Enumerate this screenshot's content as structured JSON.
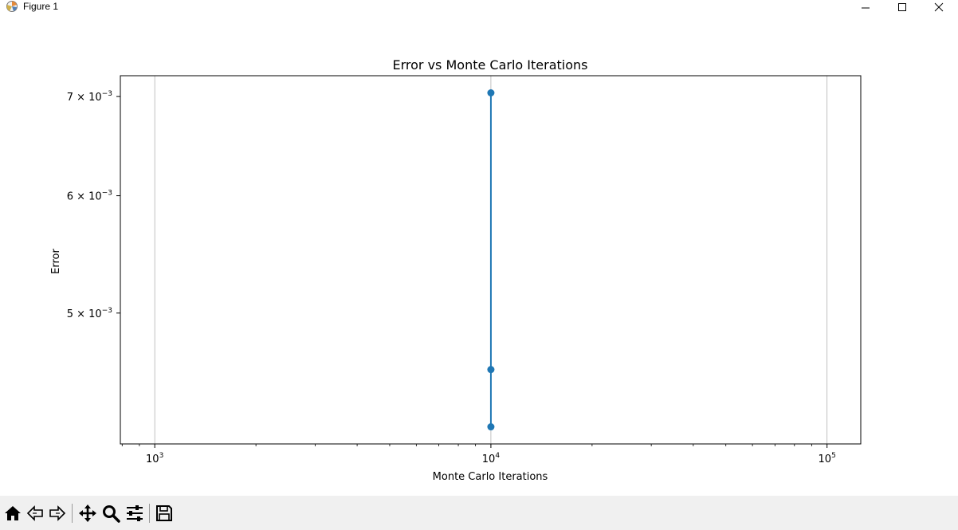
{
  "window": {
    "title": "Figure 1",
    "icons": [
      "matplotlib-logo-icon",
      "minimize-icon",
      "maximize-icon",
      "close-icon"
    ]
  },
  "toolbar": {
    "buttons": [
      "home-icon",
      "back-icon",
      "forward-icon",
      "pan-icon",
      "zoom-icon",
      "configure-subplots-icon",
      "save-icon"
    ]
  },
  "chart_data": {
    "type": "line",
    "title": "Error vs Monte Carlo Iterations",
    "xlabel": "Monte Carlo Iterations",
    "ylabel": "Error",
    "xscale": "log",
    "yscale": "log",
    "xlim": [
      790,
      126000
    ],
    "ylim": [
      0.00408,
      0.00723
    ],
    "x_ticks": [
      {
        "value": 1000,
        "base": "10",
        "exp": "3"
      },
      {
        "value": 10000,
        "base": "10",
        "exp": "4"
      },
      {
        "value": 100000,
        "base": "10",
        "exp": "5"
      }
    ],
    "y_ticks": [
      {
        "value": 0.005,
        "mant": "5",
        "base": "10",
        "exp": "−3"
      },
      {
        "value": 0.006,
        "mant": "6",
        "base": "10",
        "exp": "−3"
      },
      {
        "value": 0.007,
        "mant": "7",
        "base": "10",
        "exp": "−3"
      }
    ],
    "grid": "x-major",
    "legend": "none",
    "series": [
      {
        "color": "#1f77b4",
        "marker": "circle",
        "x": [
          10000,
          10000,
          10000
        ],
        "y": [
          0.00704,
          0.00458,
          0.00419
        ]
      }
    ]
  }
}
